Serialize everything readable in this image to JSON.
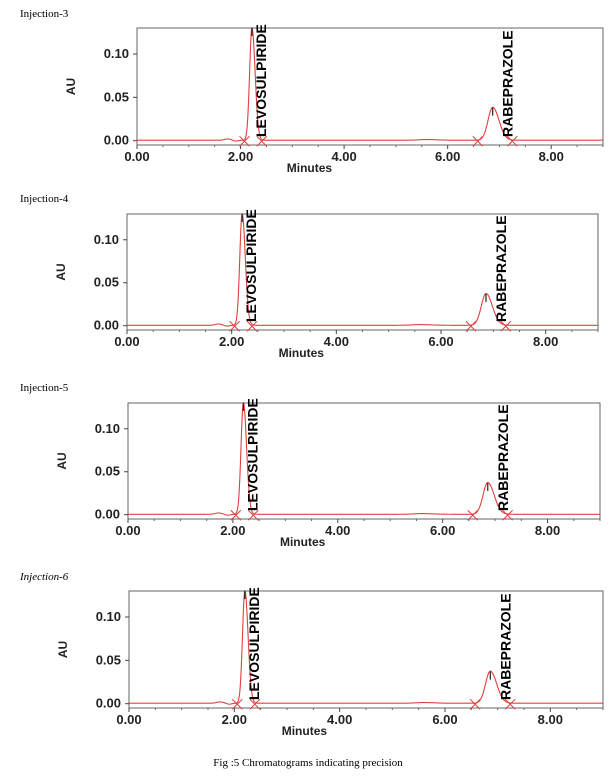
{
  "caption": "Fig :5  Chromatograms indicating precision",
  "chart_data": [
    {
      "type": "line",
      "title": "Injection-3",
      "title_style": "normal",
      "xlabel": "Minutes",
      "ylabel": "AU",
      "xlim": [
        0,
        9
      ],
      "ylim": [
        -0.005,
        0.13
      ],
      "x_ticks": [
        "0.00",
        "2.00",
        "4.00",
        "6.00",
        "8.00"
      ],
      "x_tick_values": [
        0,
        2,
        4,
        6,
        8
      ],
      "y_ticks": [
        "0.00",
        "0.05",
        "0.10"
      ],
      "y_tick_values": [
        0,
        0.05,
        0.1
      ],
      "series_color": "#e0403f",
      "peaks": [
        {
          "label": "LEVOSULPIRIDE",
          "rt": 2.22,
          "height": 0.13,
          "width": 0.045
        },
        {
          "label": "RABEPRAZOLE",
          "rt": 6.87,
          "height": 0.038,
          "width": 0.09
        }
      ],
      "minor_peaks": [
        {
          "rt": 1.75,
          "height": 0.0015,
          "width": 0.06
        },
        {
          "rt": 5.6,
          "height": 0.0008,
          "width": 0.15
        }
      ]
    },
    {
      "type": "line",
      "title": "Injection-4",
      "title_style": "normal",
      "xlabel": "Minutes",
      "ylabel": "AU",
      "xlim": [
        0,
        9
      ],
      "ylim": [
        -0.005,
        0.13
      ],
      "x_ticks": [
        "0.00",
        "2.00",
        "4.00",
        "6.00",
        "8.00"
      ],
      "x_tick_values": [
        0,
        2,
        4,
        6,
        8
      ],
      "y_ticks": [
        "0.00",
        "0.05",
        "0.10"
      ],
      "y_tick_values": [
        0,
        0.05,
        0.1
      ],
      "series_color": "#e0403f",
      "peaks": [
        {
          "label": "LEVOSULPIRIDE",
          "rt": 2.2,
          "height": 0.13,
          "width": 0.045
        },
        {
          "label": "RABEPRAZOLE",
          "rt": 6.86,
          "height": 0.037,
          "width": 0.09
        }
      ],
      "minor_peaks": [
        {
          "rt": 1.75,
          "height": 0.0015,
          "width": 0.06
        },
        {
          "rt": 5.6,
          "height": 0.0008,
          "width": 0.15
        }
      ]
    },
    {
      "type": "line",
      "title": "Injection-5",
      "title_style": "normal",
      "xlabel": "Minutes",
      "ylabel": "AU",
      "xlim": [
        0,
        9
      ],
      "ylim": [
        -0.005,
        0.13
      ],
      "x_ticks": [
        "0.00",
        "2.00",
        "4.00",
        "6.00",
        "8.00"
      ],
      "x_tick_values": [
        0,
        2,
        4,
        6,
        8
      ],
      "y_ticks": [
        "0.00",
        "0.05",
        "0.10"
      ],
      "y_tick_values": [
        0,
        0.05,
        0.1
      ],
      "series_color": "#e0403f",
      "peaks": [
        {
          "label": "LEVOSULPIRIDE",
          "rt": 2.2,
          "height": 0.13,
          "width": 0.045
        },
        {
          "label": "RABEPRAZOLE",
          "rt": 6.86,
          "height": 0.037,
          "width": 0.09
        }
      ],
      "minor_peaks": [
        {
          "rt": 1.72,
          "height": 0.0015,
          "width": 0.06
        },
        {
          "rt": 5.6,
          "height": 0.0008,
          "width": 0.15
        }
      ]
    },
    {
      "type": "line",
      "title": "Injection-6",
      "title_style": "italic",
      "xlabel": "Minutes",
      "ylabel": "AU",
      "xlim": [
        0,
        9
      ],
      "ylim": [
        -0.005,
        0.13
      ],
      "x_ticks": [
        "0.00",
        "2.00",
        "4.00",
        "6.00",
        "8.00"
      ],
      "x_tick_values": [
        0,
        2,
        4,
        6,
        8
      ],
      "y_ticks": [
        "0.00",
        "0.05",
        "0.10"
      ],
      "y_tick_values": [
        0,
        0.05,
        0.1
      ],
      "series_color": "#e0403f",
      "peaks": [
        {
          "label": "LEVOSULPIRIDE",
          "rt": 2.2,
          "height": 0.13,
          "width": 0.045
        },
        {
          "label": "RABEPRAZOLE",
          "rt": 6.86,
          "height": 0.037,
          "width": 0.09
        }
      ],
      "minor_peaks": [
        {
          "rt": 1.72,
          "height": 0.0015,
          "width": 0.06
        },
        {
          "rt": 5.6,
          "height": 0.0008,
          "width": 0.15
        }
      ]
    }
  ]
}
